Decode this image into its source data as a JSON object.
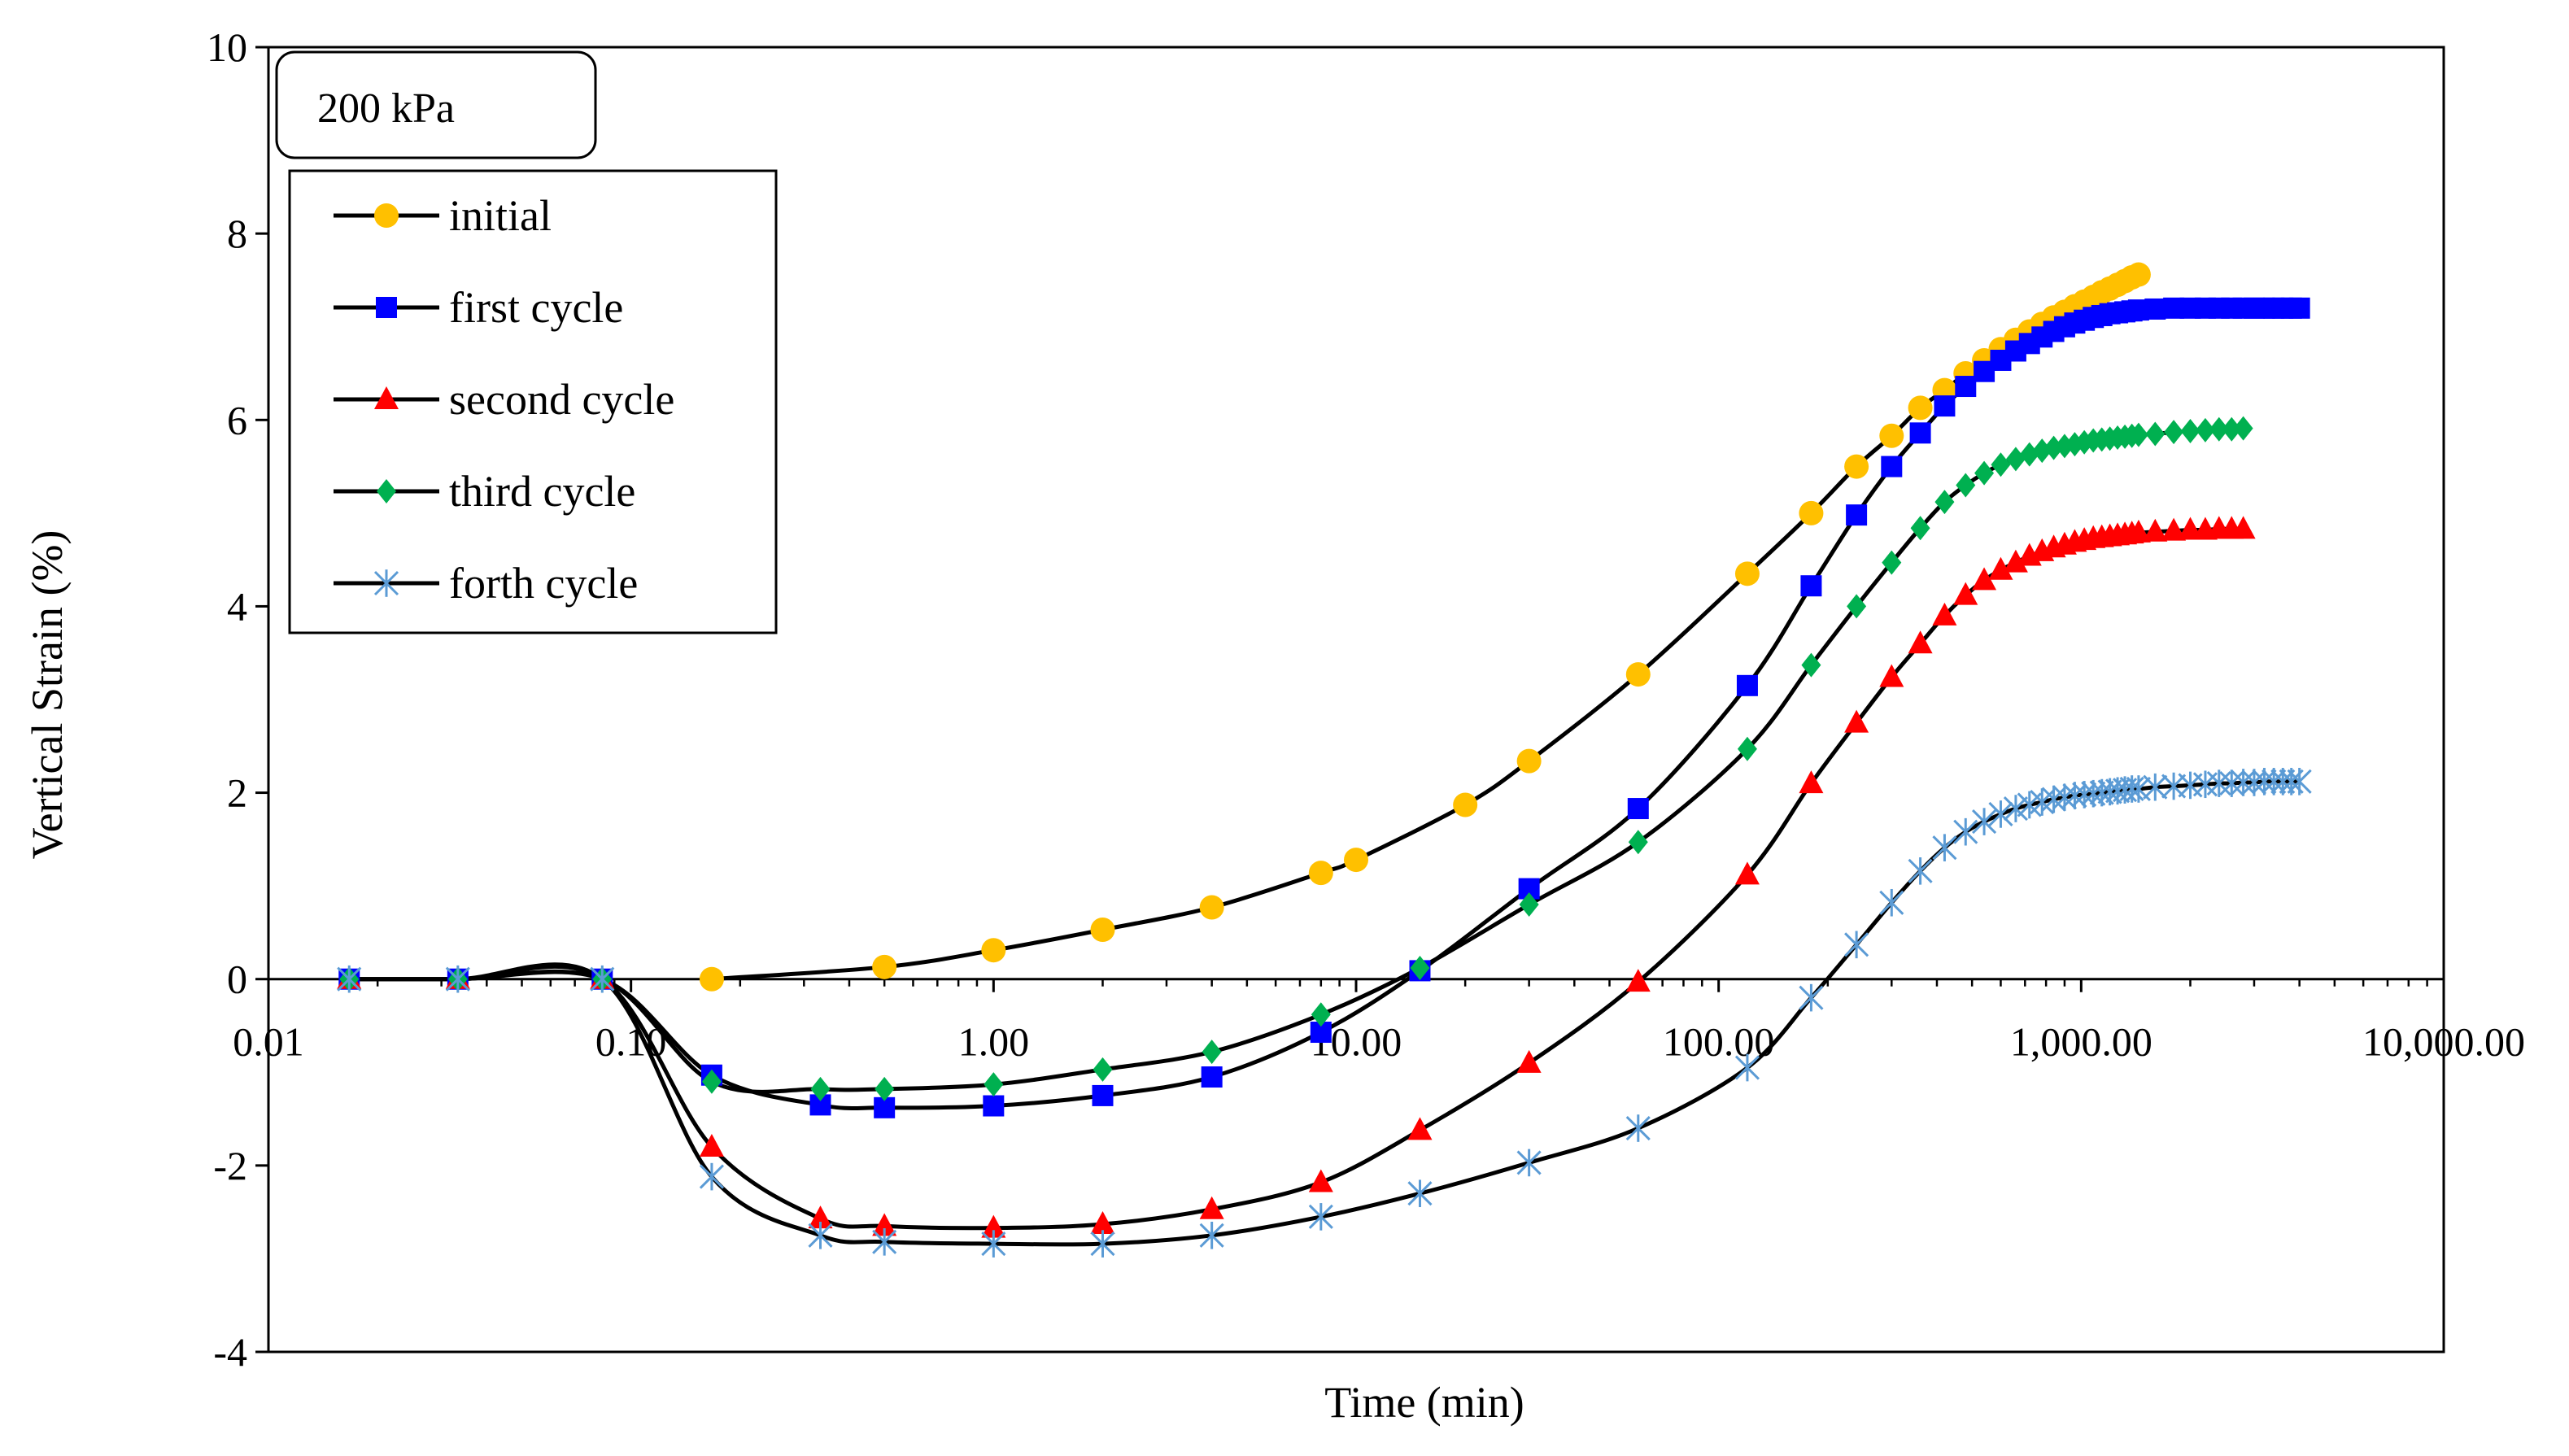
{
  "chart_data": {
    "type": "scatter",
    "title": "",
    "annotation": "200 kPa",
    "xlabel": "Time  (min)",
    "ylabel": "Vertical Strain (%)",
    "xscale": "log",
    "xlim": [
      0.01,
      10000
    ],
    "ylim": [
      -4,
      10
    ],
    "x_ticks": [
      0.01,
      0.1,
      1,
      10,
      100,
      1000,
      10000
    ],
    "x_tick_labels": [
      "0.01",
      "0.10",
      "1.00",
      "10.00",
      "100.00",
      "1,000.00",
      "10,000.00"
    ],
    "y_ticks": [
      -4,
      -2,
      0,
      2,
      4,
      6,
      8,
      10
    ],
    "y_tick_labels": [
      "-4",
      "-2",
      "0",
      "2",
      "4",
      "6",
      "8",
      "10"
    ],
    "legend_position": "top-left",
    "series": [
      {
        "name": "initial",
        "marker": "circle",
        "color": "#FFC000",
        "x": [
          0.167,
          0.5,
          1,
          2,
          4,
          8,
          10,
          20,
          30,
          60,
          120,
          180,
          240,
          300,
          360,
          420,
          480,
          540,
          600,
          660,
          720,
          780,
          840,
          900,
          960,
          1020,
          1080,
          1140,
          1200,
          1260,
          1320,
          1380,
          1440
        ],
        "y": [
          0.0,
          0.13,
          0.31,
          0.53,
          0.77,
          1.14,
          1.28,
          1.87,
          2.34,
          3.27,
          4.35,
          5.0,
          5.5,
          5.83,
          6.13,
          6.32,
          6.5,
          6.64,
          6.76,
          6.86,
          6.95,
          7.03,
          7.1,
          7.16,
          7.22,
          7.27,
          7.32,
          7.37,
          7.41,
          7.45,
          7.49,
          7.53,
          7.56
        ]
      },
      {
        "name": "first cycle",
        "marker": "square",
        "color": "#0000FF",
        "x": [
          0.0167,
          0.0333,
          0.0833,
          0.167,
          0.333,
          0.5,
          1,
          2,
          4,
          8,
          15,
          30,
          60,
          120,
          180,
          240,
          300,
          360,
          420,
          480,
          540,
          600,
          660,
          720,
          780,
          840,
          900,
          960,
          1020,
          1080,
          1140,
          1200,
          1260,
          1320,
          1380,
          1440,
          1600,
          1800,
          2000,
          2200,
          2400,
          2600,
          2800,
          3000,
          3200,
          3400,
          3600,
          3800,
          4000
        ],
        "y": [
          0.0,
          0.0,
          0.0,
          -1.03,
          -1.35,
          -1.38,
          -1.36,
          -1.25,
          -1.05,
          -0.57,
          0.09,
          0.97,
          1.83,
          3.15,
          4.22,
          4.98,
          5.5,
          5.86,
          6.15,
          6.36,
          6.52,
          6.64,
          6.74,
          6.82,
          6.89,
          6.95,
          7.0,
          7.04,
          7.07,
          7.1,
          7.12,
          7.14,
          7.15,
          7.16,
          7.17,
          7.18,
          7.19,
          7.2,
          7.2,
          7.2,
          7.2,
          7.2,
          7.2,
          7.2,
          7.2,
          7.2,
          7.2,
          7.2,
          7.2
        ]
      },
      {
        "name": "second cycle",
        "marker": "triangle",
        "color": "#FF0000",
        "x": [
          0.0167,
          0.0333,
          0.0833,
          0.167,
          0.333,
          0.5,
          1,
          2,
          4,
          8,
          15,
          30,
          60,
          120,
          180,
          240,
          300,
          360,
          420,
          480,
          540,
          600,
          660,
          720,
          780,
          840,
          900,
          960,
          1020,
          1080,
          1140,
          1200,
          1260,
          1320,
          1380,
          1440,
          1600,
          1800,
          2000,
          2200,
          2400,
          2600,
          2800
        ],
        "y": [
          0.0,
          0.0,
          0.0,
          -1.8,
          -2.57,
          -2.65,
          -2.67,
          -2.63,
          -2.47,
          -2.18,
          -1.62,
          -0.9,
          -0.03,
          1.12,
          2.1,
          2.75,
          3.24,
          3.6,
          3.9,
          4.12,
          4.28,
          4.39,
          4.47,
          4.54,
          4.59,
          4.63,
          4.66,
          4.69,
          4.71,
          4.73,
          4.74,
          4.75,
          4.76,
          4.77,
          4.78,
          4.79,
          4.8,
          4.81,
          4.82,
          4.82,
          4.83,
          4.83,
          4.83
        ]
      },
      {
        "name": "third cycle",
        "marker": "diamond",
        "color": "#00B050",
        "x": [
          0.0167,
          0.0333,
          0.0833,
          0.167,
          0.333,
          0.5,
          1,
          2,
          4,
          8,
          15,
          30,
          60,
          120,
          180,
          240,
          300,
          360,
          420,
          480,
          540,
          600,
          660,
          720,
          780,
          840,
          900,
          960,
          1020,
          1080,
          1140,
          1200,
          1260,
          1320,
          1380,
          1440,
          1600,
          1800,
          2000,
          2200,
          2400,
          2600,
          2800
        ],
        "y": [
          0.0,
          0.0,
          0.0,
          -1.1,
          -1.18,
          -1.18,
          -1.13,
          -0.97,
          -0.78,
          -0.38,
          0.12,
          0.8,
          1.47,
          2.47,
          3.37,
          4.0,
          4.47,
          4.84,
          5.12,
          5.3,
          5.43,
          5.52,
          5.58,
          5.63,
          5.67,
          5.7,
          5.72,
          5.74,
          5.76,
          5.78,
          5.79,
          5.8,
          5.81,
          5.82,
          5.83,
          5.84,
          5.85,
          5.87,
          5.88,
          5.89,
          5.9,
          5.9,
          5.91
        ]
      },
      {
        "name": "forth cycle",
        "marker": "asterisk",
        "color": "#5B9BD5",
        "x": [
          0.0167,
          0.0333,
          0.0833,
          0.167,
          0.333,
          0.5,
          1,
          2,
          4,
          8,
          15,
          30,
          60,
          120,
          180,
          240,
          300,
          360,
          420,
          480,
          540,
          600,
          660,
          720,
          780,
          840,
          900,
          960,
          1020,
          1080,
          1140,
          1200,
          1260,
          1320,
          1380,
          1440,
          1600,
          1800,
          2000,
          2200,
          2400,
          2600,
          2800,
          3000,
          3200,
          3400,
          3600,
          3800,
          4000
        ],
        "y": [
          0.0,
          0.0,
          0.0,
          -2.12,
          -2.75,
          -2.82,
          -2.84,
          -2.84,
          -2.75,
          -2.55,
          -2.3,
          -1.97,
          -1.6,
          -0.95,
          -0.2,
          0.37,
          0.82,
          1.16,
          1.41,
          1.58,
          1.69,
          1.77,
          1.83,
          1.87,
          1.9,
          1.93,
          1.95,
          1.97,
          1.98,
          1.99,
          2.0,
          2.01,
          2.02,
          2.03,
          2.04,
          2.04,
          2.06,
          2.07,
          2.08,
          2.09,
          2.1,
          2.1,
          2.11,
          2.11,
          2.12,
          2.12,
          2.12,
          2.12,
          2.12
        ]
      }
    ]
  }
}
